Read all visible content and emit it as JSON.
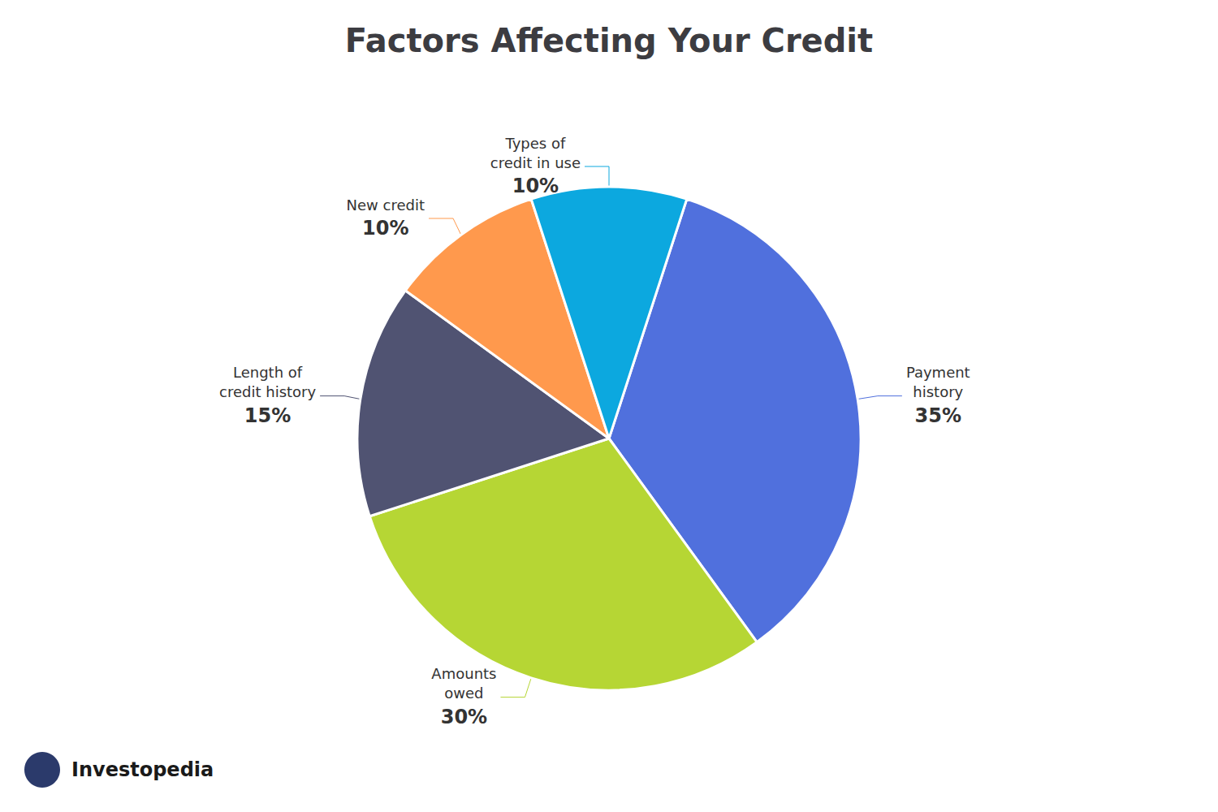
{
  "chart_data": {
    "type": "pie",
    "title": "Factors Affecting Your Credit",
    "categories": [
      "Payment\nhistory",
      "Amounts\nowed",
      "Length of\ncredit history",
      "New credit",
      "Types of\ncredit in use"
    ],
    "values": [
      35,
      30,
      15,
      10,
      10
    ],
    "value_labels": [
      "35%",
      "30%",
      "15%",
      "10%",
      "10%"
    ],
    "data_labels": true,
    "annotations": [
      "Investopedia"
    ]
  }
}
